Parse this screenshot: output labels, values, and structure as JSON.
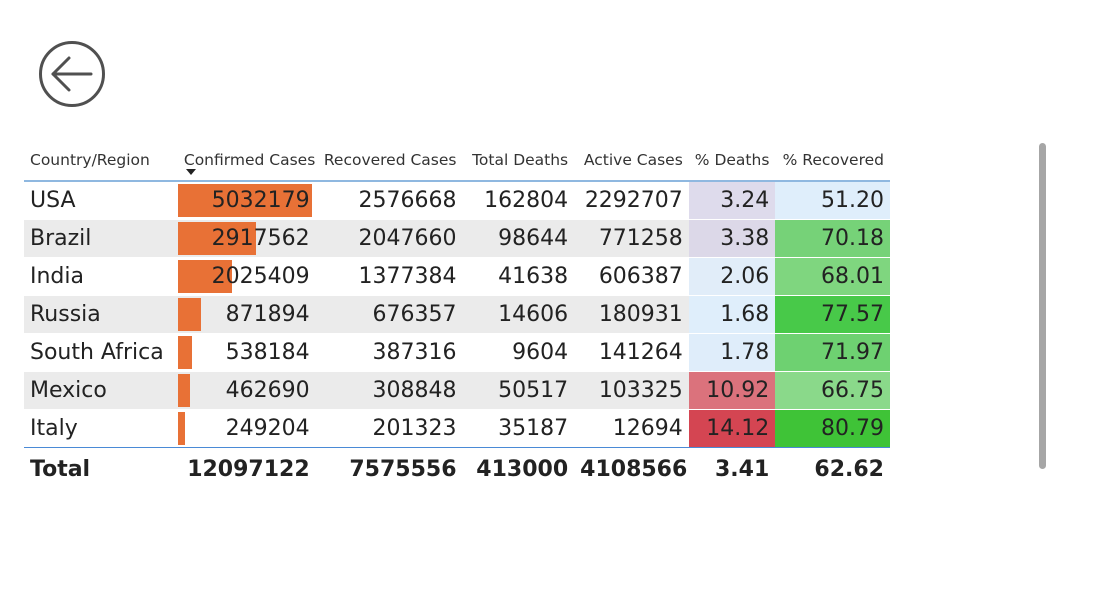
{
  "navigation": {
    "back_icon": "arrow-left-circle-icon"
  },
  "table": {
    "headers": [
      "Country/Region",
      "Confirmed Cases",
      "Recovered Cases",
      "Total Deaths",
      "Active Cases",
      "% Deaths",
      "% Recovered"
    ],
    "sorted_by": "Confirmed Cases",
    "sort_direction": "descending",
    "rows": [
      {
        "country": "USA",
        "confirmed": "5032179",
        "recovered": "2576668",
        "deaths": "162804",
        "active": "2292707",
        "pct_deaths": "3.24",
        "pct_recovered": "51.20",
        "confirmed_value": 5032179,
        "pct_deaths_color": "#dedbec",
        "pct_recovered_color": "#dfeefb"
      },
      {
        "country": "Brazil",
        "confirmed": "2917562",
        "recovered": "2047660",
        "deaths": "98644",
        "active": "771258",
        "pct_deaths": "3.38",
        "pct_recovered": "70.18",
        "confirmed_value": 2917562,
        "pct_deaths_color": "#dcd8e8",
        "pct_recovered_color": "#76d278"
      },
      {
        "country": "India",
        "confirmed": "2025409",
        "recovered": "1377384",
        "deaths": "41638",
        "active": "606387",
        "pct_deaths": "2.06",
        "pct_recovered": "68.01",
        "confirmed_value": 2025409,
        "pct_deaths_color": "#e1edf9",
        "pct_recovered_color": "#7fd67f"
      },
      {
        "country": "Russia",
        "confirmed": "871894",
        "recovered": "676357",
        "deaths": "14606",
        "active": "180931",
        "pct_deaths": "1.68",
        "pct_recovered": "77.57",
        "confirmed_value": 871894,
        "pct_deaths_color": "#dfeefb",
        "pct_recovered_color": "#48c949"
      },
      {
        "country": "South Africa",
        "confirmed": "538184",
        "recovered": "387316",
        "deaths": "9604",
        "active": "141264",
        "pct_deaths": "1.78",
        "pct_recovered": "71.97",
        "confirmed_value": 538184,
        "pct_deaths_color": "#dfedfa",
        "pct_recovered_color": "#6ed171"
      },
      {
        "country": "Mexico",
        "confirmed": "462690",
        "recovered": "308848",
        "deaths": "50517",
        "active": "103325",
        "pct_deaths": "10.92",
        "pct_recovered": "66.75",
        "confirmed_value": 462690,
        "pct_deaths_color": "#db727c",
        "pct_recovered_color": "#8ad98a"
      },
      {
        "country": "Italy",
        "confirmed": "249204",
        "recovered": "201323",
        "deaths": "35187",
        "active": "12694",
        "pct_deaths": "14.12",
        "pct_recovered": "80.79",
        "confirmed_value": 249204,
        "pct_deaths_color": "#d44552",
        "pct_recovered_color": "#3fc337"
      }
    ],
    "total": {
      "label": "Total",
      "confirmed": "12097122",
      "recovered": "7575556",
      "deaths": "413000",
      "active": "4108566",
      "pct_deaths": "3.41",
      "pct_recovered": "62.62"
    }
  },
  "colors": {
    "bar": "#e87136",
    "header_rule": "#8fb8e0",
    "total_rule": "#4a8ad6"
  }
}
